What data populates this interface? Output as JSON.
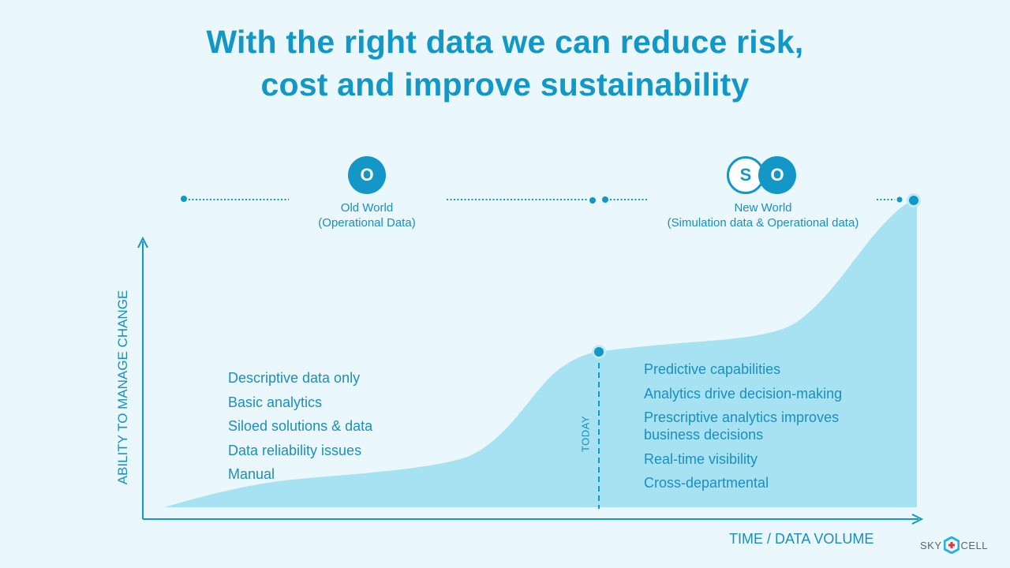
{
  "title": {
    "line1": "With the right data we can reduce risk,",
    "line2": "cost and improve sustainability"
  },
  "old_world": {
    "badge": "O",
    "label_line1": "Old World",
    "label_line2": "(Operational Data)"
  },
  "new_world": {
    "badge_s": "S",
    "badge_o": "O",
    "label_line1": "New World",
    "label_line2": "(Simulation data & Operational data)"
  },
  "axes": {
    "y_label": "ABILITY TO MANAGE CHANGE",
    "x_label": "TIME / DATA VOLUME",
    "today_label": "TODAY"
  },
  "old_items": [
    "Descriptive data only",
    "Basic analytics",
    "Siloed solutions & data",
    "Data reliability issues",
    "Manual"
  ],
  "new_items": [
    "Predictive capabilities",
    "Analytics drive decision-making",
    "Prescriptive analytics improves business decisions",
    "Real-time visibility",
    "Cross-departmental"
  ],
  "logo": {
    "left": "SKY",
    "right": "CELL"
  },
  "colors": {
    "accent": "#1297c6",
    "area_fill": "#a6e2f1",
    "background": "#eaf7fc",
    "text": "#1a8fbd"
  }
}
